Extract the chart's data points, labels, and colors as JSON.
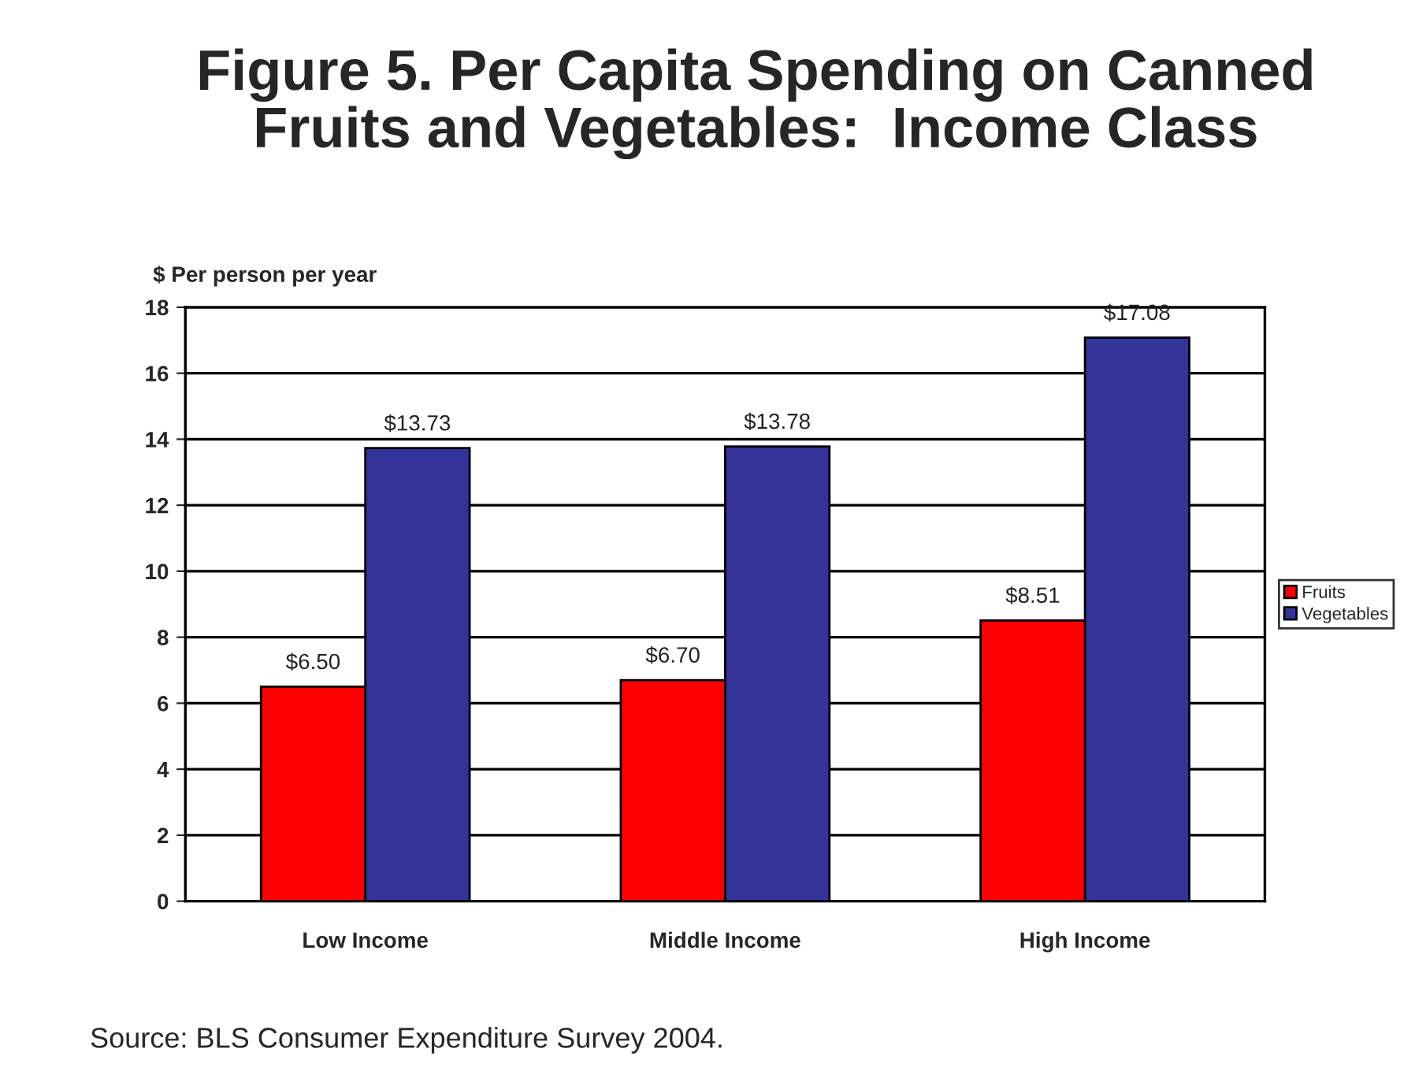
{
  "chart_data": {
    "type": "bar",
    "title": "Figure 5. Per Capita Spending on Canned\nFruits and Vegetables:  Income Class",
    "ylabel": "$ Per person per year",
    "categories": [
      "Low Income",
      "Middle Income",
      "High Income"
    ],
    "series": [
      {
        "name": "Fruits",
        "color": "#ff0000",
        "values": [
          6.5,
          6.7,
          8.51
        ],
        "value_labels": [
          "$6.50",
          "$6.70",
          "$8.51"
        ]
      },
      {
        "name": "Vegetables",
        "color": "#333399",
        "values": [
          13.73,
          13.78,
          17.08
        ],
        "value_labels": [
          "$13.73",
          "$13.78",
          "$17.08"
        ]
      }
    ],
    "ylim": [
      0,
      18
    ],
    "yticks": [
      0,
      2,
      4,
      6,
      8,
      10,
      12,
      14,
      16,
      18
    ],
    "grid": "y",
    "legend": "right",
    "annotations": [
      "Source: BLS Consumer Expenditure Survey 2004."
    ]
  }
}
